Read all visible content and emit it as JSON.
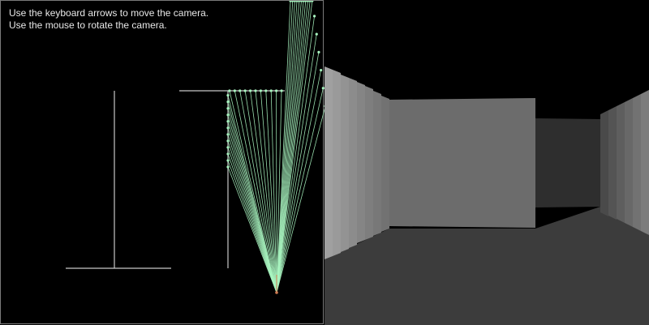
{
  "instructions": {
    "line1": "Use the keyboard arrows to move the camera.",
    "line2": "Use the mouse to rotate the camera."
  },
  "colors": {
    "ray": "#a8f5c0",
    "wall_line": "#c8c8c8",
    "camera": "#d07a50",
    "floor": "#3c3c3c",
    "sky": "#000000"
  },
  "camera": {
    "ray_count": 40,
    "view": "first-person"
  }
}
